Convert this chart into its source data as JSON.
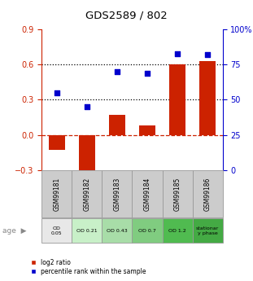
{
  "title": "GDS2589 / 802",
  "samples": [
    "GSM99181",
    "GSM99182",
    "GSM99183",
    "GSM99184",
    "GSM99185",
    "GSM99186"
  ],
  "log2_ratio": [
    -0.13,
    -0.32,
    0.17,
    0.08,
    0.6,
    0.63
  ],
  "percentile_rank": [
    55,
    45,
    70,
    69,
    83,
    82
  ],
  "bar_color": "#cc2200",
  "dot_color": "#0000cc",
  "left_ylim": [
    -0.3,
    0.9
  ],
  "left_yticks": [
    -0.3,
    0.0,
    0.3,
    0.6,
    0.9
  ],
  "right_ylim": [
    0,
    100
  ],
  "right_yticks": [
    0,
    25,
    50,
    75,
    100
  ],
  "right_yticklabels": [
    "0",
    "25",
    "50",
    "75",
    "100%"
  ],
  "hlines_dotted": [
    0.3,
    0.6
  ],
  "hline_dashed": 0.0,
  "age_labels": [
    "OD\n0.05",
    "OD 0.21",
    "OD 0.43",
    "OD 0.7",
    "OD 1.2",
    "stationar\ny phase"
  ],
  "age_bg_colors": [
    "#e8e8e8",
    "#c8f0c8",
    "#a8dda8",
    "#80cc80",
    "#50bb50",
    "#44aa44"
  ],
  "sample_bg_color": "#cccccc",
  "legend_bar_label": "log2 ratio",
  "legend_dot_label": "percentile rank within the sample",
  "age_label": "age"
}
